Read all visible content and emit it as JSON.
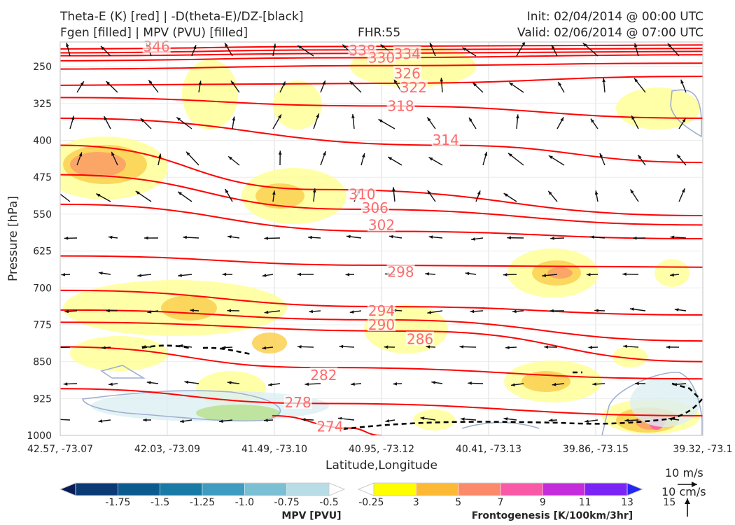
{
  "header": {
    "title_left_1": "Theta-E (K) [red] | -D(theta-E)/DZ-[black]",
    "title_left_2": "Fgen [filled] | MPV (PVU) [filled]",
    "fhr": "FHR:55",
    "init": "Init: 02/04/2014 @ 00:00 UTC",
    "valid": "Valid: 02/06/2014 @ 07:00 UTC"
  },
  "chart_data": {
    "type": "cross-section",
    "xlabel": "Latitude,Longitude",
    "ylabel": "Pressure [hPa]",
    "x_ticks": [
      "42.57, -73.07",
      "42.03, -73.09",
      "41.49, -73.10",
      "40.95, -73.12",
      "40.41, -73.13",
      "39.86, -73.15",
      "39.32, -73.1"
    ],
    "y_ticks": [
      250,
      325,
      400,
      475,
      550,
      625,
      700,
      775,
      850,
      925,
      1000
    ],
    "ylim": [
      200,
      1000
    ],
    "y_inverted": true,
    "grid": true,
    "theta_e_contours": [
      {
        "level": 346,
        "label": "346",
        "points": [
          [
            0,
            214
          ],
          [
            0.45,
            209
          ],
          [
            1,
            206
          ]
        ]
      },
      {
        "level": 338,
        "label": "338",
        "points": [
          [
            0,
            222
          ],
          [
            0.45,
            216
          ],
          [
            1,
            213
          ]
        ]
      },
      {
        "level": 334,
        "label": "334",
        "points": [
          [
            0,
            228
          ],
          [
            0.5,
            223
          ],
          [
            1,
            219
          ]
        ]
      },
      {
        "level": 330,
        "label": "330",
        "points": [
          [
            0,
            238
          ],
          [
            0.45,
            232
          ],
          [
            1,
            226
          ]
        ]
      },
      {
        "level": 326,
        "label": "326",
        "points": [
          [
            0,
            255
          ],
          [
            0.5,
            248
          ],
          [
            1,
            243
          ]
        ]
      },
      {
        "level": 322,
        "label": "322",
        "points": [
          [
            0,
            288
          ],
          [
            0.5,
            284
          ],
          [
            1,
            270
          ]
        ]
      },
      {
        "level": 318,
        "label": "318",
        "points": [
          [
            0,
            313
          ],
          [
            0.5,
            330
          ],
          [
            1,
            355
          ]
        ]
      },
      {
        "level": 314,
        "label": "314",
        "points": [
          [
            0,
            355
          ],
          [
            0.6,
            410
          ],
          [
            1,
            445
          ]
        ]
      },
      {
        "level": 310,
        "label": "310",
        "points": [
          [
            0,
            410
          ],
          [
            0.4,
            500
          ],
          [
            1,
            553
          ]
        ]
      },
      {
        "level": 306,
        "label": "306",
        "points": [
          [
            0,
            470
          ],
          [
            0.45,
            540
          ],
          [
            1,
            572
          ]
        ]
      },
      {
        "level": 302,
        "label": "302",
        "points": [
          [
            0,
            530
          ],
          [
            0.5,
            585
          ],
          [
            1,
            600
          ]
        ]
      },
      {
        "level": 298,
        "label": "298",
        "points": [
          [
            0,
            635
          ],
          [
            0.5,
            654
          ],
          [
            1,
            658
          ]
        ]
      },
      {
        "level": 294,
        "label": "294",
        "points": [
          [
            0,
            705
          ],
          [
            0.5,
            738
          ],
          [
            1,
            755
          ]
        ]
      },
      {
        "level": 290,
        "label": "290",
        "points": [
          [
            0,
            745
          ],
          [
            0.5,
            765
          ],
          [
            1,
            808
          ]
        ]
      },
      {
        "level": 286,
        "label": "286",
        "points": [
          [
            0,
            770
          ],
          [
            0.55,
            788
          ],
          [
            1,
            850
          ]
        ]
      },
      {
        "level": 282,
        "label": "282",
        "points": [
          [
            0,
            820
          ],
          [
            0.4,
            862
          ],
          [
            1,
            885
          ]
        ]
      },
      {
        "level": 278,
        "label": "278",
        "points": [
          [
            0,
            905
          ],
          [
            0.4,
            935
          ],
          [
            1,
            960
          ]
        ]
      },
      {
        "level": 274,
        "label": "274",
        "points": [
          [
            0.33,
            960
          ],
          [
            0.45,
            985
          ],
          [
            0.5,
            1000
          ]
        ]
      }
    ],
    "contour_labels": [
      {
        "label": "346",
        "x": 0.15,
        "y": 215
      },
      {
        "label": "338",
        "x": 0.47,
        "y": 223
      },
      {
        "label": "334",
        "x": 0.54,
        "y": 230
      },
      {
        "label": "330",
        "x": 0.5,
        "y": 238
      },
      {
        "label": "326",
        "x": 0.54,
        "y": 270
      },
      {
        "label": "322",
        "x": 0.55,
        "y": 298
      },
      {
        "label": "318",
        "x": 0.53,
        "y": 336
      },
      {
        "label": "314",
        "x": 0.6,
        "y": 405
      },
      {
        "label": "310",
        "x": 0.47,
        "y": 515
      },
      {
        "label": "306",
        "x": 0.49,
        "y": 543
      },
      {
        "label": "302",
        "x": 0.5,
        "y": 578
      },
      {
        "label": "298",
        "x": 0.53,
        "y": 673
      },
      {
        "label": "294",
        "x": 0.5,
        "y": 752
      },
      {
        "label": "290",
        "x": 0.5,
        "y": 781
      },
      {
        "label": "286",
        "x": 0.56,
        "y": 810
      },
      {
        "label": "282",
        "x": 0.41,
        "y": 883
      },
      {
        "label": "278",
        "x": 0.37,
        "y": 939
      },
      {
        "label": "274",
        "x": 0.42,
        "y": 988
      }
    ],
    "colorbars": [
      {
        "title": "MPV [PVU]",
        "labels": [
          "-1.75",
          "-1.5",
          "-1.25",
          "-1.0",
          "-0.75",
          "-0.5",
          "-0.25"
        ],
        "colors": [
          "#081d58",
          "#0b3a75",
          "#0d5a8f",
          "#1a7aa6",
          "#3f9bc0",
          "#7bbfd4",
          "#b9dde6",
          "#ffffff"
        ]
      },
      {
        "title": "Frontogenesis [K/100km/3hr]",
        "labels": [
          "3",
          "5",
          "7",
          "9",
          "11",
          "13",
          "15"
        ],
        "colors": [
          "#ffffff",
          "#ffff00",
          "#fbb936",
          "#fa8a6a",
          "#f95aa8",
          "#c42ddc",
          "#7a24f5",
          "#2525f5"
        ]
      }
    ],
    "reference_vectors": {
      "horizontal": "10 m/s",
      "vertical": "10 cm/s"
    }
  }
}
